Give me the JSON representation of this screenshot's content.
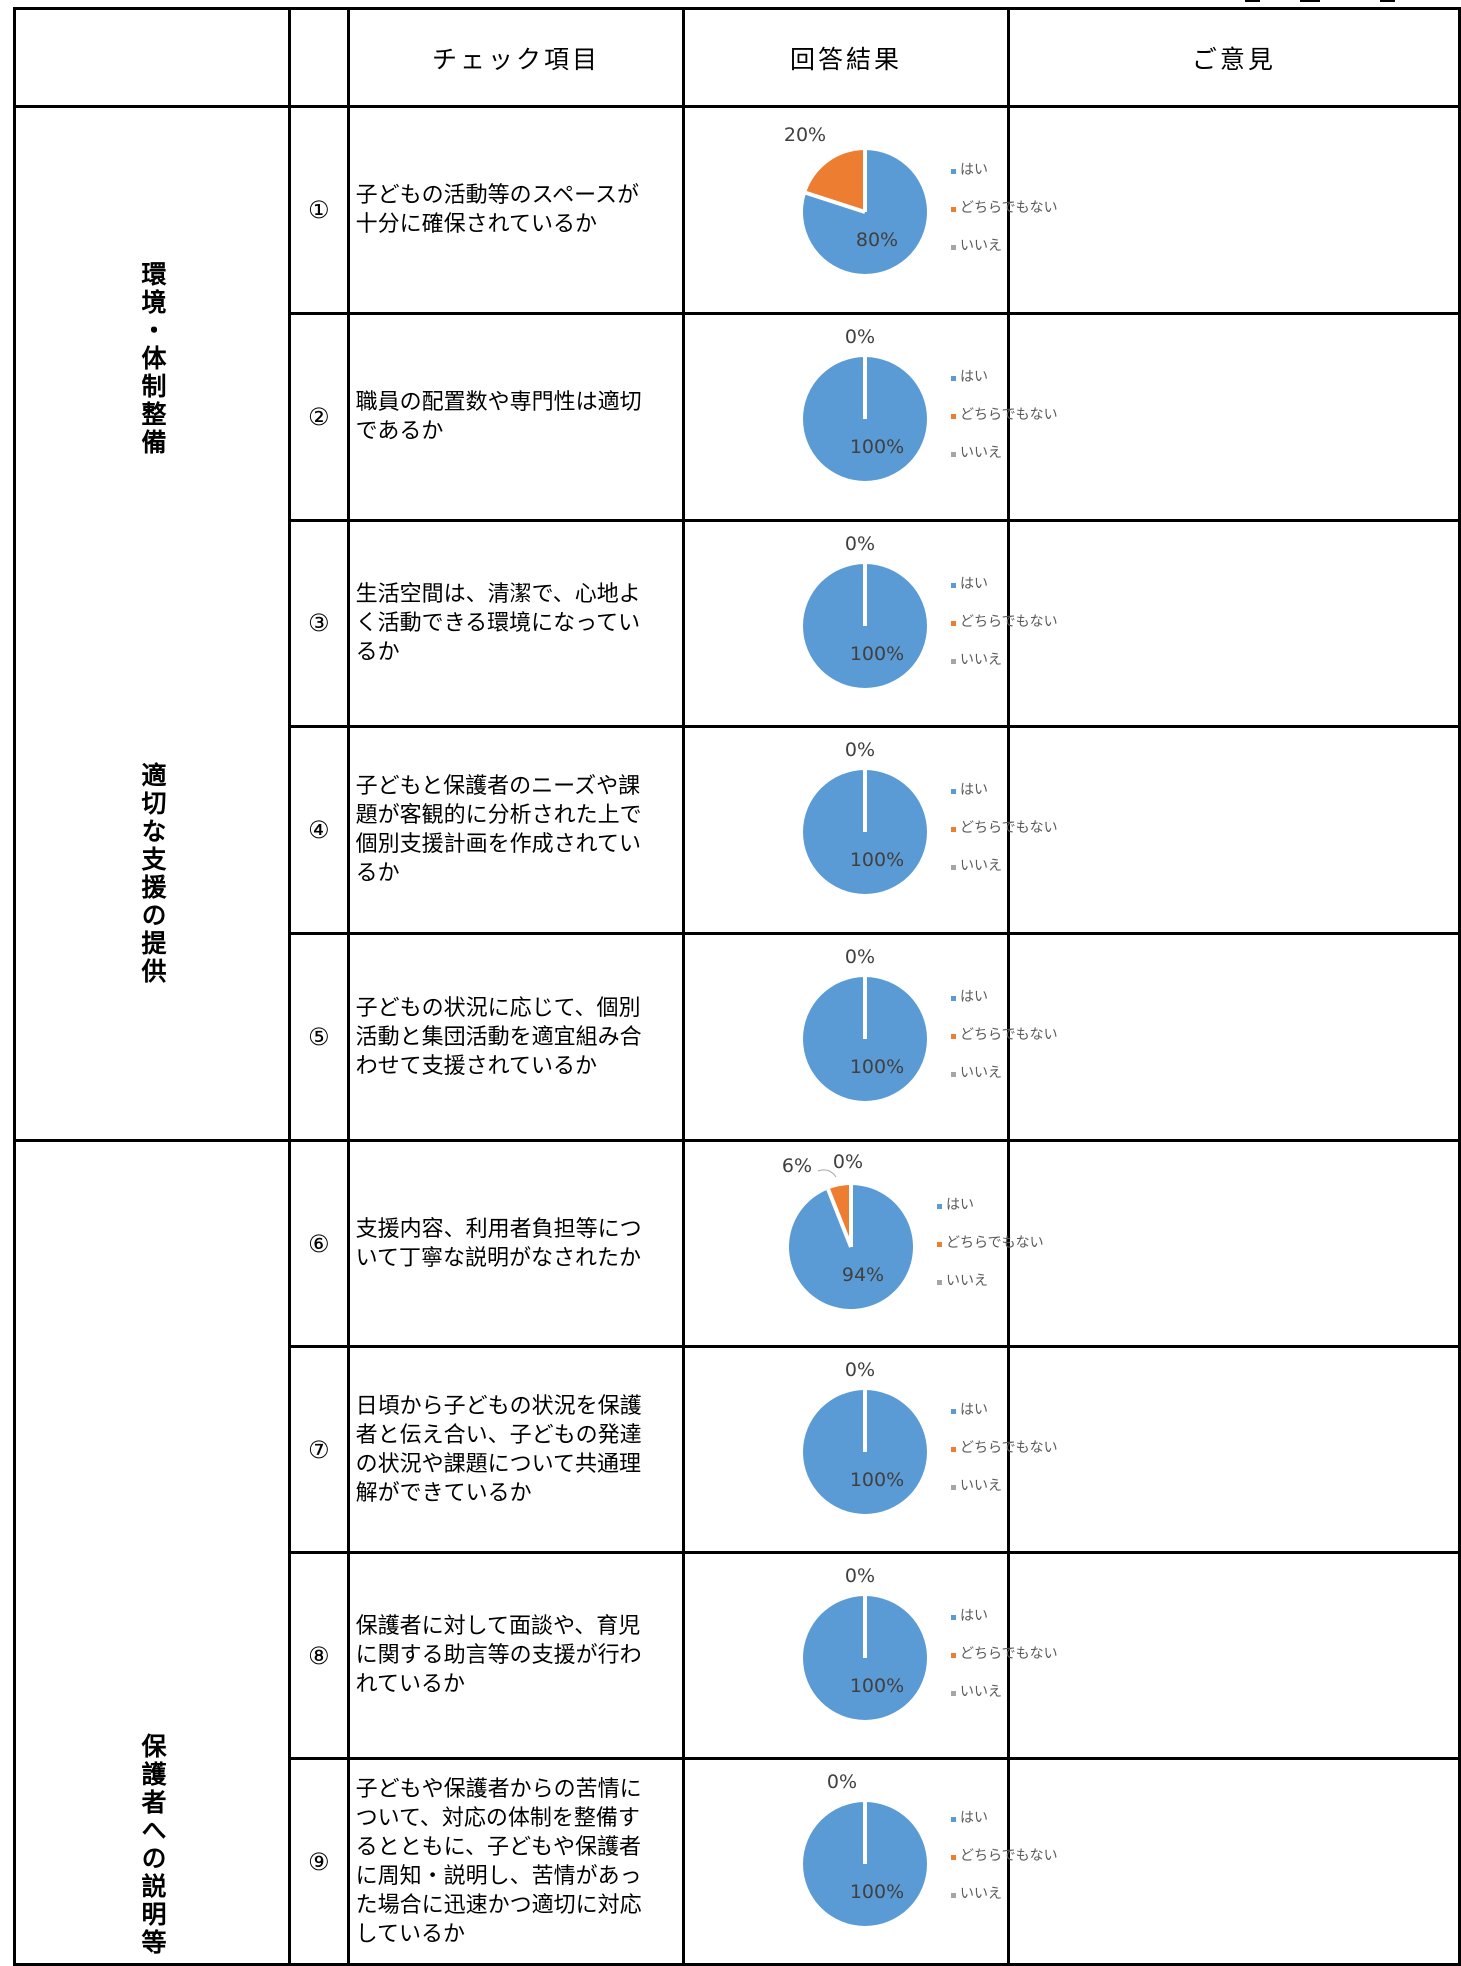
{
  "header": {
    "col_item": "チェック項目",
    "col_result": "回答結果",
    "col_opinion": "ご意見"
  },
  "categories": [
    {
      "label": "環境・体制整備"
    },
    {
      "label": "適切な支援の提供"
    },
    {
      "label": "保護者への説明等"
    }
  ],
  "legend": [
    "はい",
    "どちらでもない",
    "いいえ"
  ],
  "colors": {
    "yes": "#5B9BD5",
    "neutral": "#ED7D31",
    "no": "#A5A5A5"
  },
  "rows": [
    {
      "num": "①",
      "text": "子どもの活動等のスペースが十分に確保されているか"
    },
    {
      "num": "②",
      "text": "職員の配置数や専門性は適切であるか"
    },
    {
      "num": "③",
      "text": "生活空間は、清潔で、心地よく活動できる環境になっているか"
    },
    {
      "num": "④",
      "text": "子どもと保護者のニーズや課題が客観的に分析された上で個別支援計画を作成されているか"
    },
    {
      "num": "⑤",
      "text": "子どもの状況に応じて、個別活動と集団活動を適宜組み合わせて支援されているか"
    },
    {
      "num": "⑥",
      "text": "支援内容、利用者負担等について丁寧な説明がなされたか"
    },
    {
      "num": "⑦",
      "text": "日頃から子どもの状況を保護者と伝え合い、子どもの発達の状況や課題について共通理解ができているか"
    },
    {
      "num": "⑧",
      "text": "保護者に対して面談や、育児に関する助言等の支援が行われているか"
    },
    {
      "num": "⑨",
      "text": "子どもや保護者からの苦情について、対応の体制を整備するとともに、子どもや保護者に周知・説明し、苦情があった場合に迅速かつ適切に対応しているか"
    }
  ],
  "chart_data": [
    {
      "type": "pie",
      "categories": [
        "はい",
        "どちらでもない",
        "いいえ"
      ],
      "values": [
        80,
        20,
        0
      ],
      "labels": [
        "80%",
        "20%",
        ""
      ]
    },
    {
      "type": "pie",
      "categories": [
        "はい",
        "どちらでもない",
        "いいえ"
      ],
      "values": [
        100,
        0,
        0
      ],
      "labels": [
        "100%",
        "0%",
        ""
      ]
    },
    {
      "type": "pie",
      "categories": [
        "はい",
        "どちらでもない",
        "いいえ"
      ],
      "values": [
        100,
        0,
        0
      ],
      "labels": [
        "100%",
        "0%",
        ""
      ]
    },
    {
      "type": "pie",
      "categories": [
        "はい",
        "どちらでもない",
        "いいえ"
      ],
      "values": [
        100,
        0,
        0
      ],
      "labels": [
        "100%",
        "0%",
        ""
      ]
    },
    {
      "type": "pie",
      "categories": [
        "はい",
        "どちらでもない",
        "いいえ"
      ],
      "values": [
        100,
        0,
        0
      ],
      "labels": [
        "100%",
        "0%",
        ""
      ]
    },
    {
      "type": "pie",
      "categories": [
        "はい",
        "どちらでもない",
        "いいえ"
      ],
      "values": [
        94,
        6,
        0
      ],
      "labels": [
        "94%",
        "6%",
        "0%"
      ]
    },
    {
      "type": "pie",
      "categories": [
        "はい",
        "どちらでもない",
        "いいえ"
      ],
      "values": [
        100,
        0,
        0
      ],
      "labels": [
        "100%",
        "0%",
        ""
      ]
    },
    {
      "type": "pie",
      "categories": [
        "はい",
        "どちらでもない",
        "いいえ"
      ],
      "values": [
        100,
        0,
        0
      ],
      "labels": [
        "100%",
        "0%",
        ""
      ]
    },
    {
      "type": "pie",
      "categories": [
        "はい",
        "どちらでもない",
        "いいえ"
      ],
      "values": [
        100,
        0,
        0
      ],
      "labels": [
        "100%",
        "0%",
        ""
      ]
    }
  ]
}
